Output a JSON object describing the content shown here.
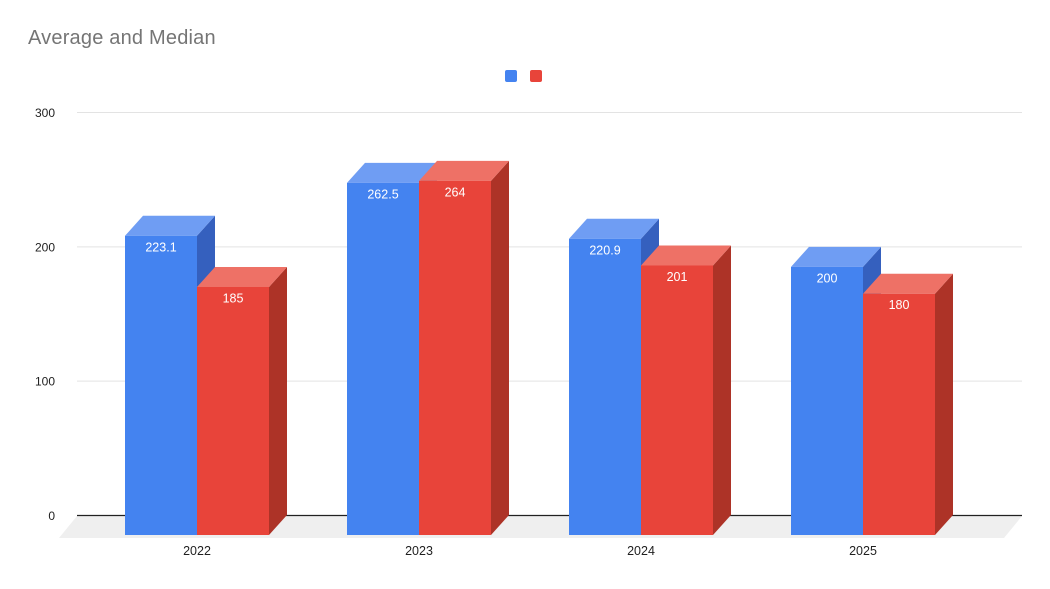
{
  "chart_data": {
    "type": "bar",
    "subtype": "3d-grouped-column",
    "title": "Average and Median",
    "categories": [
      "2022",
      "2023",
      "2024",
      "2025"
    ],
    "series": [
      {
        "name": "",
        "color": "#4483F0",
        "color_top": "#6F9DF3",
        "color_side": "#3560BE",
        "values": [
          223.1,
          262.5,
          220.9,
          200
        ]
      },
      {
        "name": "",
        "color": "#E8443A",
        "color_top": "#EE7166",
        "color_side": "#AD3327",
        "values": [
          185,
          264,
          201,
          180
        ]
      }
    ],
    "yticks": [
      0,
      100,
      200,
      300
    ],
    "ylim": [
      0,
      300
    ],
    "xlabel": "",
    "ylabel": "",
    "grid": "horizontal",
    "legend_position": "top-center",
    "data_labels": "inside-top-white",
    "colors": {
      "title_text": "#757575",
      "axis_text": "#1f1f1f",
      "gridline": "#e3e3e3",
      "baseline": "#212121",
      "floor": "#efefef",
      "background": "#ffffff",
      "bar_label_text": "#ffffff"
    }
  }
}
